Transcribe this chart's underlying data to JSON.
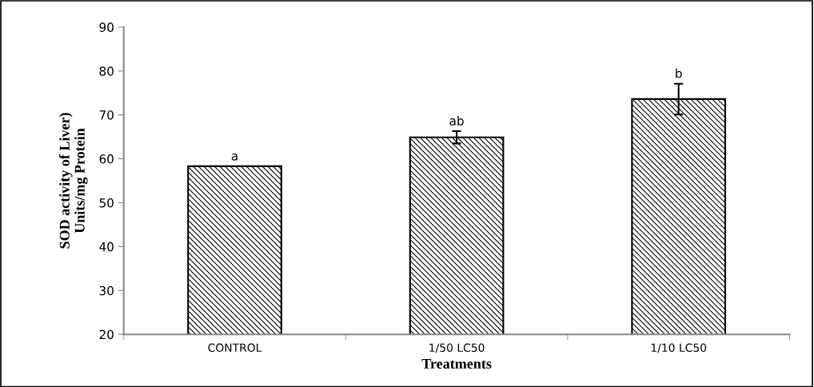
{
  "chart_data": {
    "type": "bar",
    "ylabel": "SOD activity of Liver)\nUnits/mg Protein",
    "xlabel": "Treatments",
    "categories": [
      "CONTROL",
      "1/50 LC50",
      "1/10 LC50"
    ],
    "series": [
      {
        "color": "#000000",
        "values": [
          58.3,
          64.9,
          73.6
        ],
        "errors": [
          null,
          1.4,
          3.5
        ]
      }
    ],
    "ylim": [
      20,
      90
    ],
    "yticks": [
      20,
      30,
      40,
      50,
      60,
      70,
      80,
      90
    ],
    "grid": false,
    "legend": false,
    "annotations": [
      "a",
      "ab",
      "b"
    ]
  }
}
